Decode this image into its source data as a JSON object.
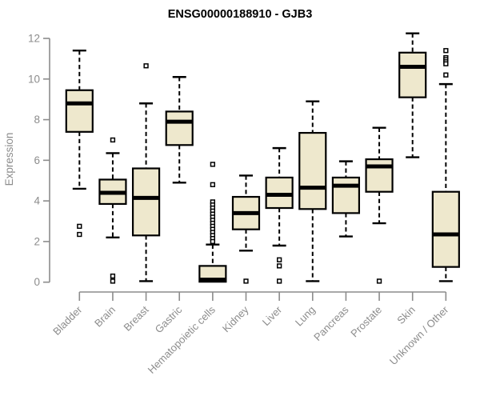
{
  "window": {
    "title": "ENSG00000188910 - GJB3"
  },
  "chart_data": {
    "type": "boxplot",
    "title": "ENSG00000188910 - GJB3",
    "xlabel": "",
    "ylabel": "Expression",
    "ylim": [
      0,
      12
    ],
    "yticks": [
      0,
      2,
      4,
      6,
      8,
      10,
      12
    ],
    "grid": false,
    "legend": "none",
    "categories": [
      "Bladder",
      "Brain",
      "Breast",
      "Gastric",
      "Hematopoietic cells",
      "Kidney",
      "Liver",
      "Lung",
      "Pancreas",
      "Prostate",
      "Skin",
      "Unknown / Other"
    ],
    "boxes": [
      {
        "category": "Bladder",
        "whisker_low": 4.6,
        "q1": 7.4,
        "median": 8.8,
        "q3": 9.45,
        "whisker_high": 11.4,
        "outliers": [
          2.75,
          2.35
        ]
      },
      {
        "category": "Brain",
        "whisker_low": 2.2,
        "q1": 3.85,
        "median": 4.4,
        "q3": 5.05,
        "whisker_high": 6.35,
        "outliers": [
          7.0,
          0.3,
          0.05
        ]
      },
      {
        "category": "Breast",
        "whisker_low": 0.05,
        "q1": 2.3,
        "median": 4.15,
        "q3": 5.6,
        "whisker_high": 8.8,
        "outliers": [
          10.65
        ]
      },
      {
        "category": "Gastric",
        "whisker_low": 4.9,
        "q1": 6.75,
        "median": 7.9,
        "q3": 8.4,
        "whisker_high": 10.1,
        "outliers": []
      },
      {
        "category": "Hematopoietic cells",
        "whisker_low": 0.02,
        "q1": 0.02,
        "median": 0.12,
        "q3": 0.8,
        "whisker_high": 1.85,
        "outliers": [
          5.8,
          4.8,
          3.95,
          3.8,
          3.65,
          3.5,
          3.35,
          3.2,
          3.05,
          2.9,
          2.75,
          2.6,
          2.45,
          2.3,
          2.15,
          2.0
        ]
      },
      {
        "category": "Kidney",
        "whisker_low": 1.55,
        "q1": 2.6,
        "median": 3.4,
        "q3": 4.2,
        "whisker_high": 5.25,
        "outliers": [
          0.05
        ]
      },
      {
        "category": "Liver",
        "whisker_low": 1.8,
        "q1": 3.65,
        "median": 4.3,
        "q3": 5.15,
        "whisker_high": 6.6,
        "outliers": [
          1.1,
          0.8,
          0.05
        ]
      },
      {
        "category": "Lung",
        "whisker_low": 0.05,
        "q1": 3.6,
        "median": 4.65,
        "q3": 7.35,
        "whisker_high": 8.9,
        "outliers": []
      },
      {
        "category": "Pancreas",
        "whisker_low": 2.25,
        "q1": 3.4,
        "median": 4.75,
        "q3": 5.15,
        "whisker_high": 5.95,
        "outliers": []
      },
      {
        "category": "Prostate",
        "whisker_low": 2.9,
        "q1": 4.45,
        "median": 5.7,
        "q3": 6.05,
        "whisker_high": 7.6,
        "outliers": [
          0.05
        ]
      },
      {
        "category": "Skin",
        "whisker_low": 6.15,
        "q1": 9.1,
        "median": 10.6,
        "q3": 11.3,
        "whisker_high": 12.25,
        "outliers": []
      },
      {
        "category": "Unknown / Other",
        "whisker_low": 0.05,
        "q1": 0.75,
        "median": 2.35,
        "q3": 4.45,
        "whisker_high": 9.75,
        "outliers": [
          11.4,
          11.05,
          10.95,
          10.85,
          10.75,
          10.2
        ]
      }
    ],
    "colors": {
      "box_fill": "#EEE8CD",
      "box_stroke": "#000000",
      "median": "#000000",
      "whisker": "#000000",
      "outlier_fill": "#FFFFFF",
      "outlier_stroke": "#000000",
      "axis": "#8C8C8C",
      "tick_label": "#8C8C8C",
      "title": "#000000",
      "background": "#FFFFFF"
    }
  }
}
